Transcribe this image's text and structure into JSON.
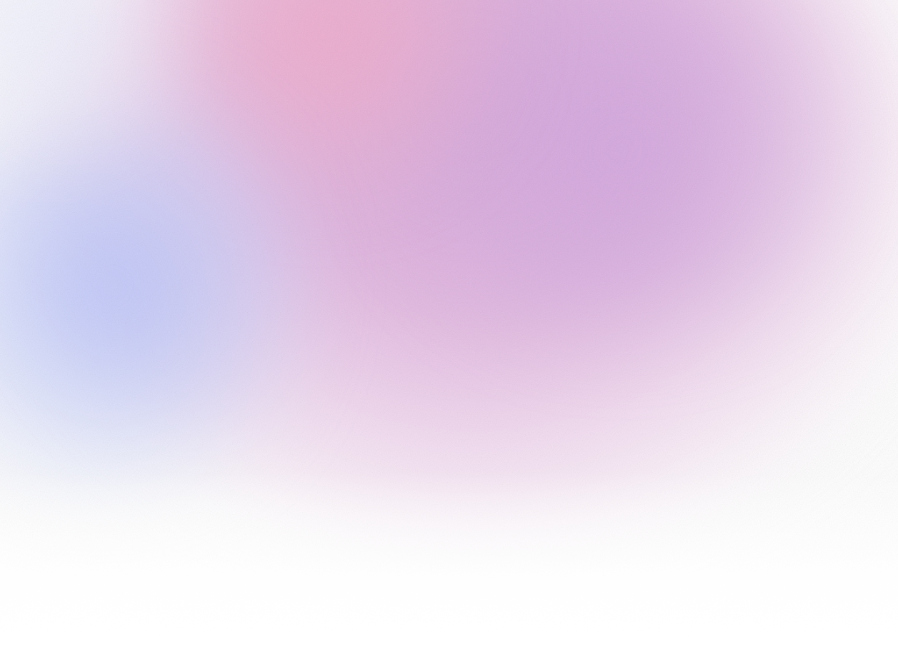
{
  "background": {
    "base_color": "#ffffff",
    "gradient_colors": [
      "#d6a0d6",
      "#f4a6c4",
      "#cea0de",
      "#b2befa"
    ]
  }
}
